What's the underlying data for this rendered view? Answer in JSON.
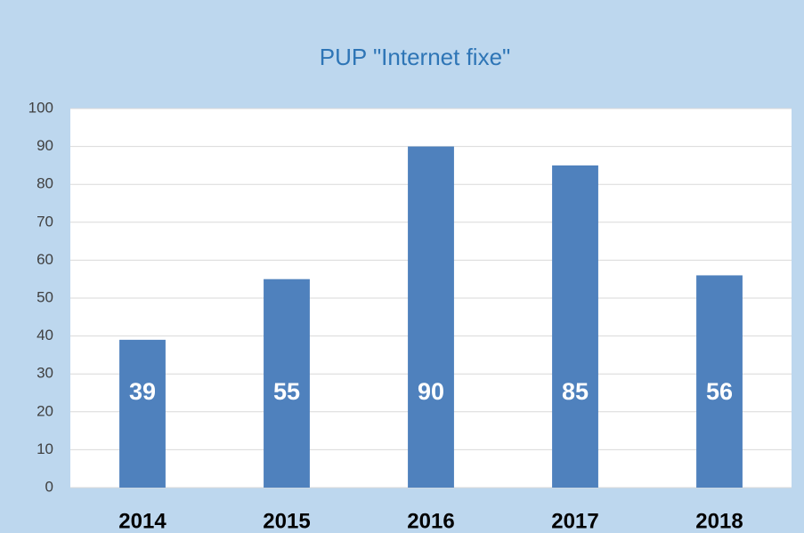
{
  "chart_data": {
    "type": "bar",
    "title": "PUP \"Internet fixe\"",
    "categories": [
      "2014",
      "2015",
      "2016",
      "2017",
      "2018"
    ],
    "values": [
      39,
      55,
      90,
      85,
      56
    ],
    "color": "#4f81bd",
    "ylim": [
      0,
      100
    ],
    "yticks": [
      0,
      10,
      20,
      30,
      40,
      50,
      60,
      70,
      80,
      90,
      100
    ],
    "grid": true
  }
}
